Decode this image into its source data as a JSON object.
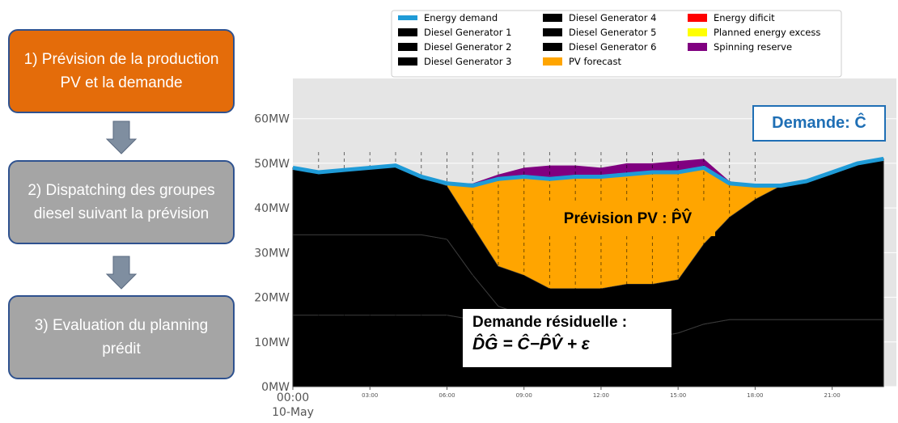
{
  "steps": [
    {
      "text": "1) Prévision de la production PV et la demande"
    },
    {
      "text": "2) Dispatching des groupes diesel suivant la prévision"
    },
    {
      "text": "3) Evaluation du planning prédit"
    }
  ],
  "annotations": {
    "demand": "Demande: Ĉ",
    "pv": "Prévision PV : P̂V̂",
    "residual_title": "Demande résiduelle :",
    "residual_formula": "D̂Ĝ =  Ĉ−P̂V̂ + ε"
  },
  "chart_data": {
    "type": "area",
    "stacked": true,
    "x": [
      0,
      1,
      2,
      3,
      4,
      5,
      6,
      7,
      8,
      9,
      10,
      11,
      12,
      13,
      14,
      15,
      16,
      17,
      18,
      19,
      20,
      21,
      22,
      23
    ],
    "xlim": [
      0,
      23.5
    ],
    "xticks": [
      {
        "value": 0,
        "label": "00:00"
      },
      {
        "value": 3,
        "label": "03:00"
      },
      {
        "value": 6,
        "label": "06:00"
      },
      {
        "value": 9,
        "label": "09:00"
      },
      {
        "value": 12,
        "label": "12:00"
      },
      {
        "value": 15,
        "label": "15:00"
      },
      {
        "value": 18,
        "label": "18:00"
      },
      {
        "value": 21,
        "label": "21:00"
      }
    ],
    "date_label": "10-May",
    "ylim": [
      0,
      69
    ],
    "yticks": [
      {
        "value": 0,
        "label": "0MW"
      },
      {
        "value": 10,
        "label": "10MW"
      },
      {
        "value": 20,
        "label": "20MW"
      },
      {
        "value": 30,
        "label": "30MW"
      },
      {
        "value": 40,
        "label": "40MW"
      },
      {
        "value": 50,
        "label": "50MW"
      },
      {
        "value": 60,
        "label": "60MW"
      }
    ],
    "series": [
      {
        "name": "Energy demand",
        "color": "#1f9bd7",
        "type": "line",
        "values": [
          49,
          48,
          48.5,
          49,
          49.5,
          47,
          45.5,
          45,
          46.5,
          47,
          46.5,
          47,
          47,
          47.5,
          48,
          48,
          49,
          45.5,
          45,
          45,
          46,
          48,
          50,
          51
        ]
      },
      {
        "name": "Diesel Generator 1",
        "color": "#000000",
        "values": [
          16,
          16,
          16,
          16,
          16,
          16,
          16,
          15,
          15,
          15,
          15,
          14,
          13,
          12,
          11,
          12,
          14,
          15,
          15,
          15,
          15,
          15,
          15,
          15
        ]
      },
      {
        "name": "Diesel Generator 2",
        "color": "#000000",
        "values": [
          18,
          18,
          18,
          18,
          18,
          18,
          17,
          10,
          3,
          1,
          0,
          0,
          0,
          0,
          0,
          0,
          0,
          0,
          0,
          0,
          0,
          0,
          0,
          0
        ]
      },
      {
        "name": "Diesel Generator 3",
        "color": "#000000",
        "values": [
          15,
          14,
          14.5,
          15,
          15.5,
          13,
          12,
          11,
          9,
          9,
          7,
          8,
          9,
          11,
          12,
          12,
          18,
          23,
          27,
          30,
          31,
          33,
          35,
          36
        ]
      },
      {
        "name": "Diesel Generator 4",
        "color": "#000000",
        "values": [
          0,
          0,
          0,
          0,
          0,
          0,
          0,
          0,
          0,
          0,
          0,
          0,
          0,
          0,
          0,
          0,
          0,
          0,
          0,
          0,
          0,
          0,
          0,
          0
        ]
      },
      {
        "name": "Diesel Generator 5",
        "color": "#000000",
        "values": [
          0,
          0,
          0,
          0,
          0,
          0,
          0,
          0,
          0,
          0,
          0,
          0,
          0,
          0,
          0,
          0,
          0,
          0,
          0,
          0,
          0,
          0,
          0,
          0
        ]
      },
      {
        "name": "Diesel Generator 6",
        "color": "#000000",
        "values": [
          0,
          0,
          0,
          0,
          0,
          0,
          0,
          0,
          0,
          0,
          0,
          0,
          0,
          0,
          0,
          0,
          0,
          0,
          0,
          0,
          0,
          0,
          0,
          0
        ]
      },
      {
        "name": "PV forecast",
        "color": "#ffa500",
        "values": [
          0,
          0,
          0,
          0,
          0,
          0,
          0.5,
          9,
          19.5,
          22,
          24.5,
          25,
          25,
          24.5,
          25,
          24,
          17,
          7.5,
          3,
          0,
          0,
          0,
          0,
          0
        ]
      },
      {
        "name": "Energy dificit",
        "color": "#ff0000",
        "values": [
          0,
          0,
          0,
          0,
          0,
          0,
          0,
          0,
          0,
          0,
          0,
          0,
          0,
          0,
          0,
          0,
          0,
          0,
          0,
          0,
          0,
          0,
          0,
          0
        ]
      },
      {
        "name": "Planned energy excess",
        "color": "#ffff00",
        "values": [
          0,
          0,
          0,
          0,
          0,
          0,
          0,
          0,
          0,
          0,
          0,
          0,
          0,
          0,
          0,
          0,
          0,
          0,
          0,
          0,
          0,
          0,
          0,
          0
        ]
      },
      {
        "name": "Spinning reserve",
        "color": "#800080",
        "values": [
          0,
          0,
          0,
          0,
          0,
          0,
          0,
          0.5,
          1,
          2,
          3,
          2.5,
          2,
          2.5,
          2,
          2.5,
          2,
          0.5,
          0,
          0,
          0,
          0,
          0,
          0
        ]
      }
    ]
  }
}
